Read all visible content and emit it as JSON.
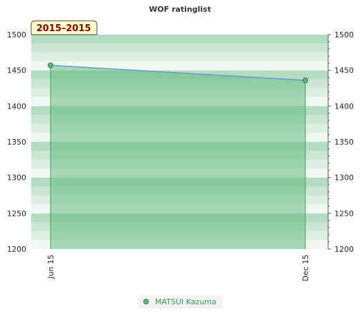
{
  "chart_data": {
    "type": "area",
    "title": "WOF ratinglist",
    "badge": "2015–2015",
    "x": [
      "Jun 15",
      "Dec 15"
    ],
    "series": [
      {
        "name": "MATSUI Kazuma",
        "values": [
          1457,
          1436
        ]
      }
    ],
    "ylim": [
      1200,
      1500
    ],
    "yticks": [
      1200,
      1250,
      1300,
      1350,
      1400,
      1450,
      1500
    ],
    "legend_position": "bottom-center",
    "colors": {
      "line": "#6699cc",
      "fill": "#5cb878",
      "marker": "#3f9f5f",
      "legend_text": "#3a9a5a",
      "bands": [
        "#f1f8f3",
        "#ddefe3",
        "#cbe7d4",
        "#b4dcc2"
      ]
    }
  }
}
